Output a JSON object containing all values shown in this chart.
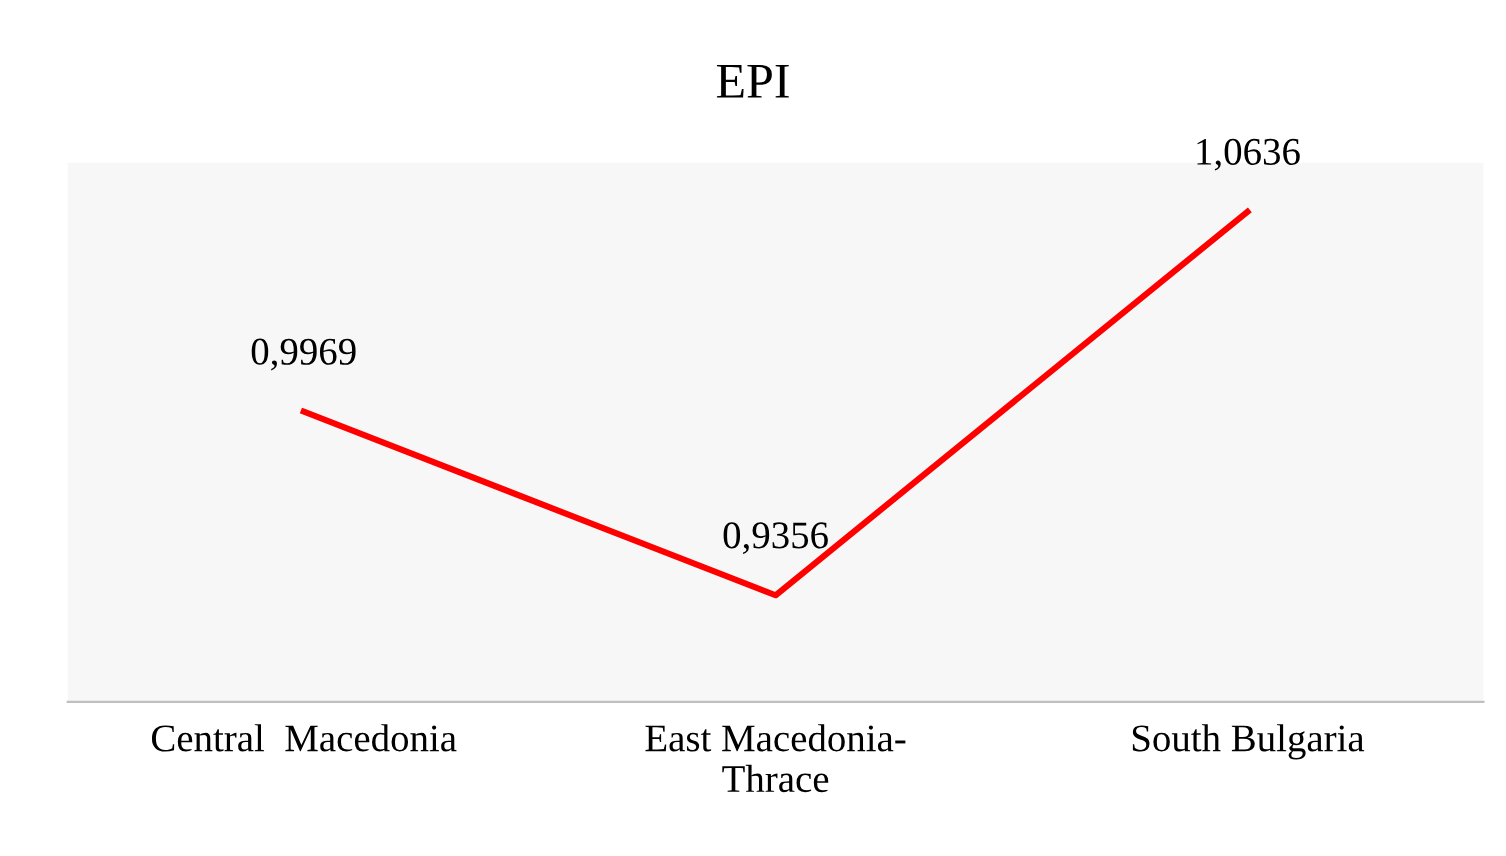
{
  "chart_data": {
    "type": "line",
    "title": "EPI",
    "categories": [
      "Central  Macedonia",
      "East Macedonia-\nThrace",
      "South Bulgaria"
    ],
    "values": [
      0.9969,
      0.9356,
      1.0636
    ],
    "value_labels": [
      "0,9969",
      "0,9356",
      "1,0636"
    ],
    "color": "#ff0000",
    "ylim": [
      0.9,
      1.08
    ],
    "tick_labels": "x",
    "grid": false,
    "legend": false,
    "marker": "none",
    "line_style": "solid"
  }
}
